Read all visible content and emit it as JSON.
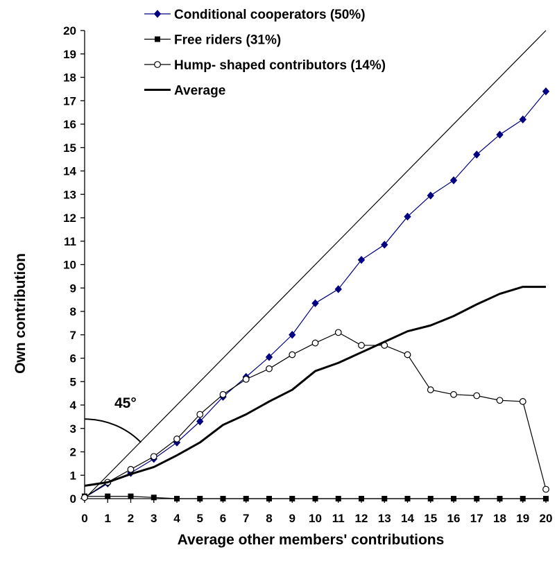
{
  "chart_data": {
    "type": "line",
    "title": "",
    "xlabel": "Average other members' contributions",
    "ylabel": "Own contribution",
    "xlim": [
      0,
      20
    ],
    "ylim": [
      0,
      20
    ],
    "grid": false,
    "legend_position": "top-left",
    "x_ticks": [
      0,
      1,
      2,
      3,
      4,
      5,
      6,
      7,
      8,
      9,
      10,
      11,
      12,
      13,
      14,
      15,
      16,
      17,
      18,
      19,
      20
    ],
    "y_ticks": [
      0,
      1,
      2,
      3,
      4,
      5,
      6,
      7,
      8,
      9,
      10,
      11,
      12,
      13,
      14,
      15,
      16,
      17,
      18,
      19,
      20
    ],
    "x": [
      0,
      1,
      2,
      3,
      4,
      5,
      6,
      7,
      8,
      9,
      10,
      11,
      12,
      13,
      14,
      15,
      16,
      17,
      18,
      19,
      20
    ],
    "series": [
      {
        "name": "Conditional cooperators (50%)",
        "marker": "diamond",
        "color": "#000080",
        "values": [
          0.05,
          0.65,
          1.1,
          1.7,
          2.4,
          3.3,
          4.35,
          5.2,
          6.05,
          7.0,
          8.35,
          8.95,
          10.2,
          10.85,
          12.05,
          12.95,
          13.6,
          14.7,
          15.55,
          16.2,
          17.4
        ]
      },
      {
        "name": "Free riders (31%)",
        "marker": "square",
        "color": "#000000",
        "values": [
          0.1,
          0.1,
          0.1,
          0.05,
          0,
          0,
          0,
          0,
          0,
          0,
          0,
          0,
          0,
          0,
          0,
          0,
          0,
          0,
          0,
          0,
          0
        ]
      },
      {
        "name": "Hump- shaped contributors (14%)",
        "marker": "circle-open",
        "color": "#000000",
        "values": [
          0.05,
          0.7,
          1.25,
          1.8,
          2.55,
          3.6,
          4.45,
          5.1,
          5.55,
          6.15,
          6.65,
          7.1,
          6.55,
          6.55,
          6.15,
          4.65,
          4.45,
          4.4,
          4.2,
          4.15,
          0.4
        ]
      },
      {
        "name": "Average",
        "marker": "none",
        "color": "#000000",
        "values": [
          0.55,
          0.7,
          1.05,
          1.35,
          1.85,
          2.4,
          3.15,
          3.6,
          4.15,
          4.65,
          5.45,
          5.8,
          6.25,
          6.7,
          7.15,
          7.4,
          7.8,
          8.3,
          8.75,
          9.05,
          9.05
        ]
      }
    ],
    "reference_line": {
      "from": [
        0,
        0
      ],
      "to": [
        20,
        20
      ],
      "color": "#000000"
    },
    "annotations": [
      {
        "text": "45°"
      }
    ]
  }
}
